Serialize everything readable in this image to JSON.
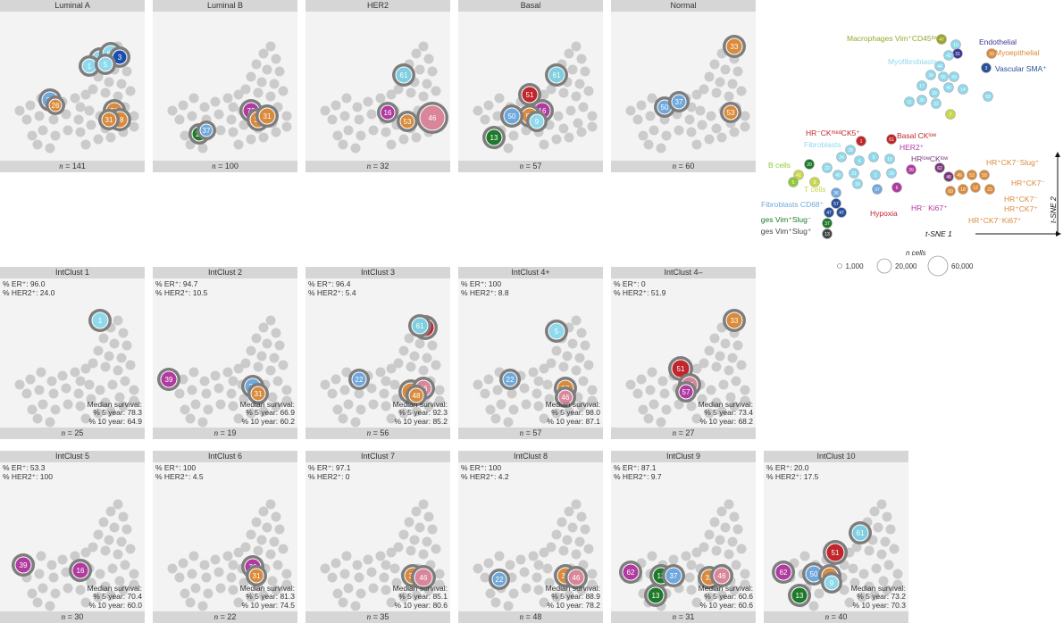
{
  "colors": {
    "bg_dot": "#cbcbcb",
    "halo": "#7d7d7d",
    "panel": "#f3f3f3",
    "bar": "#d6d6d6"
  },
  "cluster_colors": {
    "1": "#8fd9ec",
    "3": "#1a4fb0",
    "5": "#8fd9ec",
    "13": "#1e7a2a",
    "16": "#b03aa0",
    "22": "#6fa8dc",
    "26": "#d98a3a",
    "31": "#d98a3a",
    "33": "#d98a3a",
    "37": "#6fa8dc",
    "39": "#b03aa0",
    "46": "#d9869b",
    "48": "#d98a3a",
    "50": "#6fa8dc",
    "51": "#c0262c",
    "53": "#d98a3a",
    "57": "#b03aa0",
    "59": "#d98a3a",
    "61": "#7fcfe0",
    "62": "#b03aa0",
    "63": "#8fd9ec",
    "72": "#b03aa0",
    "80": "#8fd9ec",
    "85": "#c0262c"
  },
  "panels": [
    {
      "title": "Luminal A",
      "n": "141",
      "er": "",
      "her2": "",
      "surv5": "",
      "surv10": ""
    },
    {
      "title": "Luminal B",
      "n": "100",
      "er": "",
      "her2": "",
      "surv5": "",
      "surv10": ""
    },
    {
      "title": "HER2",
      "n": "32",
      "er": "",
      "her2": "",
      "surv5": "",
      "surv10": ""
    },
    {
      "title": "Basal",
      "n": "57",
      "er": "",
      "her2": "",
      "surv5": "",
      "surv10": ""
    },
    {
      "title": "Normal",
      "n": "60",
      "er": "",
      "her2": "",
      "surv5": "",
      "surv10": ""
    },
    {
      "title": "IntClust 1",
      "n": "25",
      "er": "96.0",
      "her2": "24.0",
      "surv5": "78.3",
      "surv10": "64.9"
    },
    {
      "title": "IntClust 2",
      "n": "19",
      "er": "94.7",
      "her2": "10.5",
      "surv5": "66.9",
      "surv10": "60.2"
    },
    {
      "title": "IntClust 3",
      "n": "56",
      "er": "96.4",
      "her2": "5.4",
      "surv5": "92.3",
      "surv10": "85.2"
    },
    {
      "title": "IntClust 4+",
      "n": "57",
      "er": "100",
      "her2": "8.8",
      "surv5": "98.0",
      "surv10": "87.1"
    },
    {
      "title": "IntClust 4–",
      "n": "27",
      "er": "0",
      "her2": "51.9",
      "surv5": "73.4",
      "surv10": "68.2"
    },
    {
      "title": "IntClust 5",
      "n": "30",
      "er": "53.3",
      "her2": "100",
      "surv5": "70.4",
      "surv10": "60.0"
    },
    {
      "title": "IntClust 6",
      "n": "22",
      "er": "100",
      "her2": "4.5",
      "surv5": "81.3",
      "surv10": "74.5"
    },
    {
      "title": "IntClust 7",
      "n": "35",
      "er": "97.1",
      "her2": "0",
      "surv5": "85.1",
      "surv10": "80.6"
    },
    {
      "title": "IntClust 8",
      "n": "48",
      "er": "100",
      "her2": "4.2",
      "surv5": "88.9",
      "surv10": "78.2"
    },
    {
      "title": "IntClust 9",
      "n": "31",
      "er": "87.1",
      "her2": "9.7",
      "surv5": "60.6",
      "surv10": "60.6"
    },
    {
      "title": "IntClust 10",
      "n": "40",
      "er": "20.0",
      "her2": "17.5",
      "surv5": "73.2",
      "surv10": "70.3"
    }
  ],
  "labels": {
    "er_label": "% ER⁺:",
    "her2_label": "% HER2⁺:",
    "median_survival": "Median survival:",
    "five_year": "% 5 year:",
    "ten_year": "% 10 year:",
    "n_prefix": "n",
    "n_eq": " = "
  },
  "legend": {
    "cell_types": [
      {
        "text": "Macrophages Vim⁺CD45ˡᵒʷ",
        "color": "#9aa62a"
      },
      {
        "text": "Endothelial",
        "color": "#3a3a9a"
      },
      {
        "text": "Myoepithelial",
        "color": "#d98a3a"
      },
      {
        "text": "Myofibroblasts",
        "color": "#8fd9ec"
      },
      {
        "text": "Vascular SMA⁺",
        "color": "#2a4f9a"
      },
      {
        "text": "HR⁻CKᵐᵉᵈCK5⁺",
        "color": "#c0262c"
      },
      {
        "text": "Basal CKˡᵒʷ",
        "color": "#c0262c"
      },
      {
        "text": "Fibroblasts",
        "color": "#8fd9ec"
      },
      {
        "text": "HER2⁺",
        "color": "#b03aa0"
      },
      {
        "text": "HRˡᵒʷCKˡᵒʷ",
        "color": "#7a3a7a"
      },
      {
        "text": "HR⁺CK7⁻Slug⁺",
        "color": "#d98a3a"
      },
      {
        "text": "B cells",
        "color": "#8fc83a"
      },
      {
        "text": "T cells",
        "color": "#c8d84a"
      },
      {
        "text": "HR⁺CK7⁻",
        "color": "#d98a3a"
      },
      {
        "text": "Fibroblasts CD68⁺",
        "color": "#6fa8dc"
      },
      {
        "text": "HR⁺CK7⁻",
        "color": "#d98a3a"
      },
      {
        "text": "Hypoxia",
        "color": "#c0262c"
      },
      {
        "text": "HR⁻ Ki67⁺",
        "color": "#b03aa0"
      },
      {
        "text": "HR⁺CK7⁺",
        "color": "#d98a3a"
      },
      {
        "text": "Macrophages Vim⁺Slug⁻",
        "color": "#1e7a2a"
      },
      {
        "text": "HR⁺CK7⁻Ki67⁺",
        "color": "#d98a3a"
      },
      {
        "text": "Macrophages Vim⁺Slug⁺",
        "color": "#444444"
      }
    ],
    "axis_x": "t-SNE 1",
    "axis_y": "t-SNE 2",
    "size_title": "n cells",
    "sizes": [
      "1,000",
      "20,000",
      "60,000"
    ]
  }
}
